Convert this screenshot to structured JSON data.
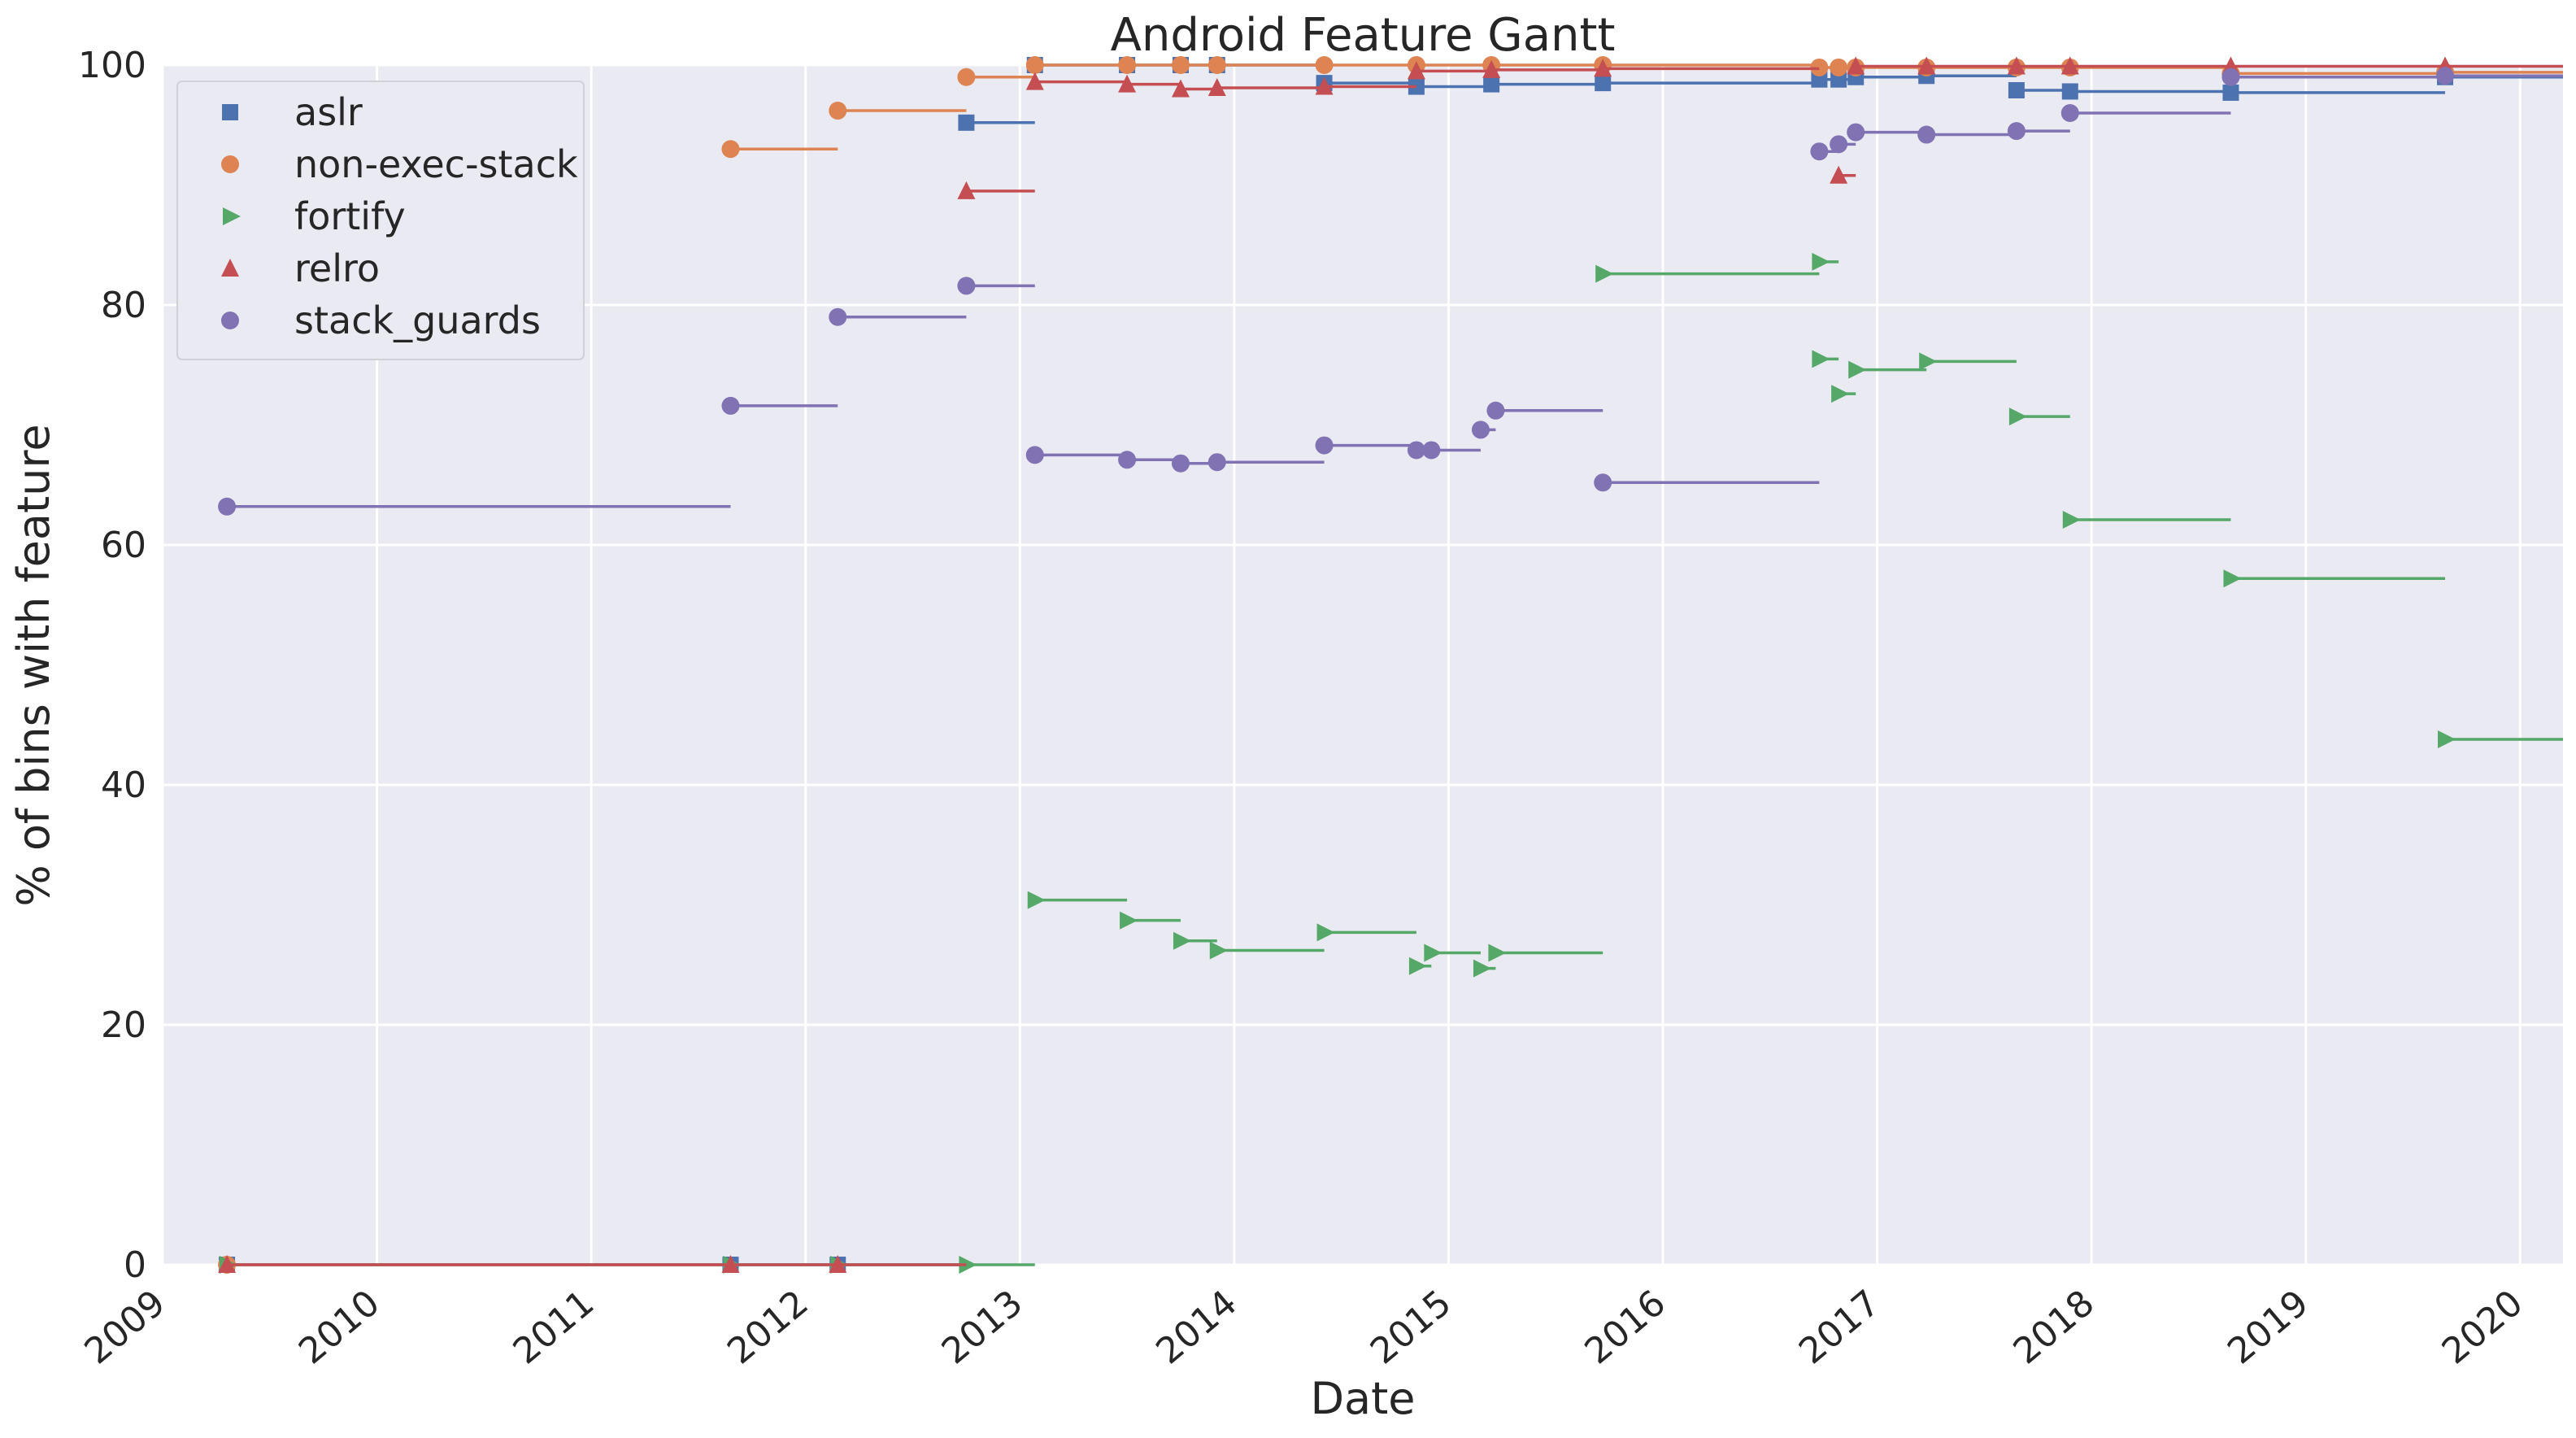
{
  "chart_data": {
    "type": "line",
    "title": "Android Feature Gantt",
    "xlabel": "Date",
    "ylabel": "% of bins with feature",
    "xlim": [
      2009.0,
      2020.2
    ],
    "ylim": [
      0,
      100
    ],
    "xticks": [
      "2009",
      "2010",
      "2011",
      "2012",
      "2013",
      "2014",
      "2015",
      "2016",
      "2017",
      "2018",
      "2019",
      "2020"
    ],
    "yticks": [
      "0",
      "20",
      "40",
      "60",
      "80",
      "100"
    ],
    "grid": true,
    "legend_position": "top-left",
    "series": [
      {
        "name": "aslr",
        "color": "#4c72b0",
        "marker": "square",
        "segments": [
          [
            2009.3,
            2011.65,
            0
          ],
          [
            2011.65,
            2012.15,
            0
          ],
          [
            2012.15,
            2012.75,
            0
          ],
          [
            2012.75,
            2013.07,
            95.2
          ],
          [
            2013.07,
            2013.5,
            100
          ],
          [
            2013.5,
            2013.75,
            100
          ],
          [
            2013.75,
            2013.92,
            100
          ],
          [
            2013.92,
            2014.42,
            100
          ],
          [
            2014.42,
            2014.85,
            98.5
          ],
          [
            2014.85,
            2015.2,
            98.2
          ],
          [
            2015.2,
            2015.72,
            98.4
          ],
          [
            2015.72,
            2016.73,
            98.5
          ],
          [
            2016.73,
            2016.82,
            98.8
          ],
          [
            2016.82,
            2016.9,
            98.8
          ],
          [
            2016.9,
            2017.23,
            99.0
          ],
          [
            2017.23,
            2017.65,
            99.1
          ],
          [
            2017.65,
            2017.9,
            97.9
          ],
          [
            2017.9,
            2018.65,
            97.8
          ],
          [
            2018.65,
            2019.65,
            97.7
          ],
          [
            2019.65,
            2020.2,
            99.0
          ]
        ]
      },
      {
        "name": "non-exec-stack",
        "color": "#dd8452",
        "marker": "circle",
        "segments": [
          [
            2009.3,
            2011.65,
            0
          ],
          [
            2011.65,
            2012.15,
            93.0
          ],
          [
            2012.15,
            2012.75,
            96.2
          ],
          [
            2012.75,
            2013.07,
            99.0
          ],
          [
            2013.07,
            2013.5,
            100
          ],
          [
            2013.5,
            2013.75,
            100
          ],
          [
            2013.75,
            2013.92,
            100
          ],
          [
            2013.92,
            2014.42,
            100
          ],
          [
            2014.42,
            2014.85,
            100
          ],
          [
            2014.85,
            2015.2,
            100
          ],
          [
            2015.2,
            2015.72,
            100
          ],
          [
            2015.72,
            2016.73,
            100
          ],
          [
            2016.73,
            2016.82,
            99.8
          ],
          [
            2016.82,
            2016.9,
            99.8
          ],
          [
            2016.9,
            2017.23,
            99.8
          ],
          [
            2017.23,
            2017.65,
            99.8
          ],
          [
            2017.65,
            2017.9,
            99.8
          ],
          [
            2017.9,
            2018.65,
            99.8
          ],
          [
            2018.65,
            2019.65,
            99.3
          ],
          [
            2019.65,
            2020.2,
            99.4
          ]
        ]
      },
      {
        "name": "fortify",
        "color": "#55a868",
        "marker": "triangle-right",
        "segments": [
          [
            2009.3,
            2011.65,
            0
          ],
          [
            2011.65,
            2012.15,
            0
          ],
          [
            2012.15,
            2012.75,
            0
          ],
          [
            2012.75,
            2013.07,
            0
          ],
          [
            2013.07,
            2013.5,
            30.4
          ],
          [
            2013.5,
            2013.75,
            28.7
          ],
          [
            2013.75,
            2013.92,
            27.0
          ],
          [
            2013.92,
            2014.42,
            26.2
          ],
          [
            2014.42,
            2014.85,
            27.7
          ],
          [
            2014.85,
            2014.92,
            24.9
          ],
          [
            2014.92,
            2015.15,
            26.0
          ],
          [
            2015.15,
            2015.22,
            24.7
          ],
          [
            2015.22,
            2015.72,
            26.0
          ],
          [
            2015.72,
            2016.73,
            82.6
          ],
          [
            2016.73,
            2016.82,
            83.6
          ],
          [
            2016.73,
            2016.82,
            75.5
          ],
          [
            2016.82,
            2016.9,
            72.6
          ],
          [
            2016.9,
            2017.23,
            74.6
          ],
          [
            2017.23,
            2017.65,
            75.3
          ],
          [
            2017.65,
            2017.9,
            70.7
          ],
          [
            2017.9,
            2018.65,
            62.1
          ],
          [
            2018.65,
            2019.65,
            57.2
          ],
          [
            2019.65,
            2020.2,
            43.8
          ]
        ]
      },
      {
        "name": "relro",
        "color": "#c44e52",
        "marker": "triangle-up",
        "segments": [
          [
            2009.3,
            2011.65,
            0
          ],
          [
            2011.65,
            2012.15,
            0
          ],
          [
            2012.15,
            2012.75,
            0
          ],
          [
            2012.75,
            2013.07,
            89.5
          ],
          [
            2013.07,
            2013.5,
            98.6
          ],
          [
            2013.5,
            2013.75,
            98.4
          ],
          [
            2013.75,
            2013.92,
            98.0
          ],
          [
            2013.92,
            2014.42,
            98.1
          ],
          [
            2014.42,
            2014.85,
            98.2
          ],
          [
            2014.85,
            2015.2,
            99.5
          ],
          [
            2015.2,
            2015.72,
            99.6
          ],
          [
            2015.72,
            2016.73,
            99.7
          ],
          [
            2016.82,
            2016.9,
            90.8
          ],
          [
            2016.9,
            2017.23,
            99.9
          ],
          [
            2017.23,
            2017.65,
            99.9
          ],
          [
            2017.65,
            2017.9,
            99.9
          ],
          [
            2017.9,
            2018.65,
            99.9
          ],
          [
            2018.65,
            2019.65,
            99.9
          ],
          [
            2019.65,
            2020.2,
            99.9
          ]
        ]
      },
      {
        "name": "stack_guards",
        "color": "#8172b3",
        "marker": "circle",
        "segments": [
          [
            2009.3,
            2011.65,
            63.2
          ],
          [
            2011.65,
            2012.15,
            71.6
          ],
          [
            2012.15,
            2012.75,
            79.0
          ],
          [
            2012.75,
            2013.07,
            81.6
          ],
          [
            2013.07,
            2013.5,
            67.5
          ],
          [
            2013.5,
            2013.75,
            67.1
          ],
          [
            2013.75,
            2013.92,
            66.8
          ],
          [
            2013.92,
            2014.42,
            66.9
          ],
          [
            2014.42,
            2014.85,
            68.3
          ],
          [
            2014.85,
            2014.92,
            67.9
          ],
          [
            2014.92,
            2015.15,
            67.9
          ],
          [
            2015.15,
            2015.22,
            69.6
          ],
          [
            2015.22,
            2015.72,
            71.2
          ],
          [
            2015.72,
            2016.73,
            65.2
          ],
          [
            2016.73,
            2016.82,
            92.8
          ],
          [
            2016.82,
            2016.9,
            93.4
          ],
          [
            2016.9,
            2017.23,
            94.4
          ],
          [
            2017.23,
            2017.65,
            94.2
          ],
          [
            2017.65,
            2017.9,
            94.5
          ],
          [
            2017.9,
            2018.65,
            96.0
          ],
          [
            2018.65,
            2019.65,
            99.0
          ],
          [
            2019.65,
            2020.2,
            99.1
          ]
        ]
      }
    ]
  }
}
